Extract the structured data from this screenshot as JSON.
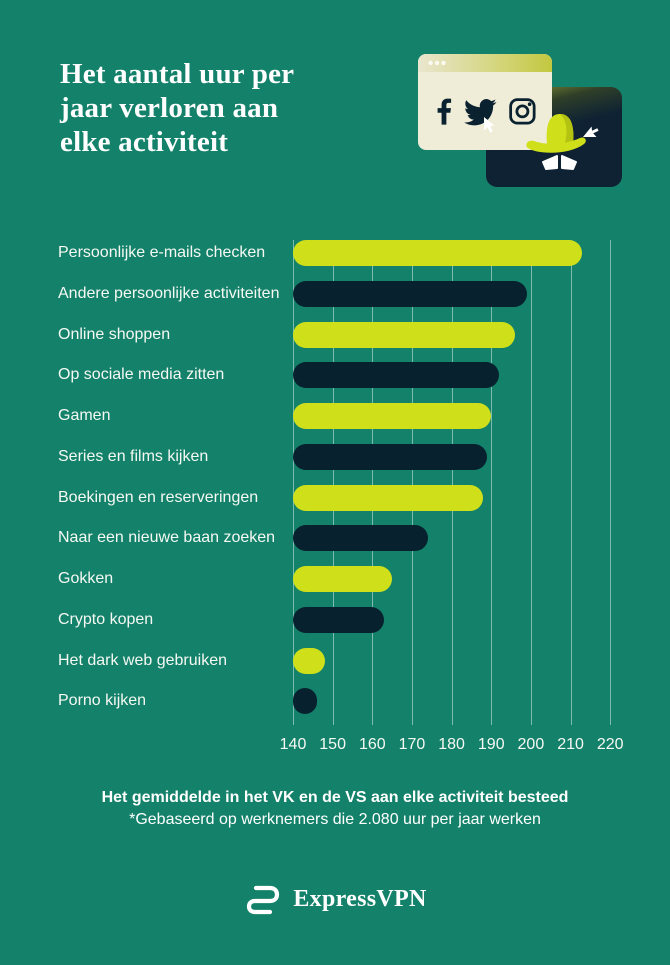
{
  "title": {
    "lines": [
      "Het aantal uur per",
      "jaar verloren aan",
      "elke activiteit"
    ],
    "text": "Het aantal uur per jaar verloren aan elke activiteit"
  },
  "illustration": {
    "icons": [
      "facebook-icon",
      "twitter-icon",
      "instagram-icon",
      "cursor-icon",
      "spy-hat-icon",
      "spy-eyes-icon"
    ],
    "elements": [
      "browser-window",
      "spy-card"
    ]
  },
  "chart_data": {
    "type": "bar",
    "orientation": "horizontal",
    "title": "Het aantal uur per jaar verloren aan elke activiteit",
    "categories": [
      "Persoonlijke e-mails checken",
      "Andere persoonlijke activiteiten",
      "Online shoppen",
      "Op sociale media zitten",
      "Gamen",
      "Series en films kijken",
      "Boekingen en reserveringen",
      "Naar een nieuwe baan zoeken",
      "Gokken",
      "Crypto kopen",
      "Het dark web gebruiken",
      "Porno kijken"
    ],
    "values": [
      213,
      199,
      196,
      192,
      190,
      189,
      188,
      174,
      165,
      163,
      148,
      146
    ],
    "bar_colors": [
      "#cfe01a",
      "#07212f",
      "#cfe01a",
      "#07212f",
      "#cfe01a",
      "#07212f",
      "#cfe01a",
      "#07212f",
      "#cfe01a",
      "#07212f",
      "#cfe01a",
      "#07212f"
    ],
    "unit": "uur per jaar",
    "xlim": [
      140,
      220
    ],
    "x_ticks": [
      140,
      150,
      160,
      170,
      180,
      190,
      200,
      210,
      220
    ],
    "grid": true,
    "legend": false
  },
  "footer": {
    "line1": "Het gemiddelde in het VK en de VS aan elke activiteit besteed",
    "line2": "*Gebaseerd op werknemers die 2.080 uur per jaar werken"
  },
  "brand": {
    "name": "ExpressVPN"
  },
  "colors": {
    "background": "#14826a",
    "lime": "#cfe01a",
    "navy": "#07212f",
    "card_navy": "#0e2233",
    "cream": "#efecd7",
    "gridline": "rgba(255,255,255,0.45)",
    "text": "#ffffff"
  }
}
